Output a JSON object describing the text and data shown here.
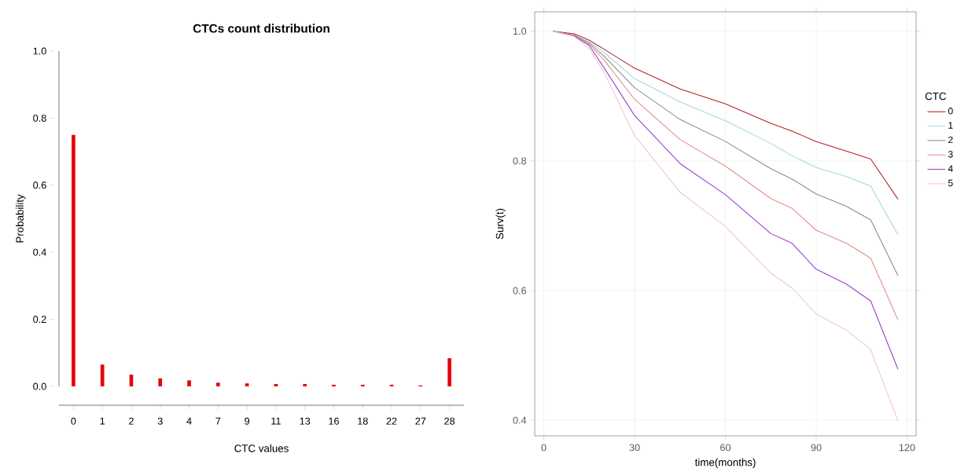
{
  "chart_data": [
    {
      "type": "bar",
      "title": "CTCs count distribution",
      "xlabel": "CTC values",
      "ylabel": "Probability",
      "categories": [
        "0",
        "1",
        "2",
        "3",
        "4",
        "7",
        "9",
        "11",
        "13",
        "16",
        "18",
        "22",
        "27",
        "28"
      ],
      "values": [
        0.75,
        0.065,
        0.035,
        0.024,
        0.018,
        0.011,
        0.009,
        0.007,
        0.007,
        0.005,
        0.005,
        0.005,
        0.003,
        0.084
      ],
      "color": "#e8000b",
      "ylim": [
        0,
        1
      ],
      "yticks": [
        {
          "value": 0,
          "label": "0.0"
        },
        0.2,
        0.4,
        0.6,
        0.8,
        {
          "value": 1,
          "label": "1.0"
        }
      ],
      "grid": false
    },
    {
      "type": "line",
      "xlabel": "time(months)",
      "ylabel": "Surv(t)",
      "legend_title": "CTC",
      "xlim": [
        -3,
        123
      ],
      "ylim": [
        0.376,
        1.03
      ],
      "xticks": [
        0,
        30,
        60,
        90,
        120
      ],
      "yticks": [
        {
          "value": 0.4,
          "label": "0.4"
        },
        {
          "value": 0.6,
          "label": "0.6"
        },
        {
          "value": 0.8,
          "label": "0.8"
        },
        {
          "value": 1.0,
          "label": "1.0"
        }
      ],
      "grid": true,
      "legend": "right",
      "x": [
        3,
        10,
        15,
        20,
        30,
        45,
        60,
        75,
        82,
        90,
        100,
        108,
        117
      ],
      "series": [
        {
          "name": "0",
          "color": "#b22222",
          "values": [
            1.0,
            0.996,
            0.986,
            0.972,
            0.943,
            0.911,
            0.888,
            0.858,
            0.846,
            0.83,
            0.815,
            0.803,
            0.741
          ]
        },
        {
          "name": "1",
          "color": "#a8d8dc",
          "values": [
            1.0,
            0.994,
            0.983,
            0.967,
            0.927,
            0.891,
            0.862,
            0.827,
            0.808,
            0.79,
            0.776,
            0.761,
            0.686
          ]
        },
        {
          "name": "2",
          "color": "#8c8c8c",
          "values": [
            1.0,
            0.994,
            0.982,
            0.961,
            0.913,
            0.864,
            0.83,
            0.788,
            0.772,
            0.749,
            0.73,
            0.709,
            0.623
          ]
        },
        {
          "name": "3",
          "color": "#e0908a",
          "values": [
            1.0,
            0.993,
            0.98,
            0.955,
            0.895,
            0.833,
            0.792,
            0.742,
            0.727,
            0.693,
            0.673,
            0.65,
            0.555
          ]
        },
        {
          "name": "4",
          "color": "#9b3fc9",
          "values": [
            1.0,
            0.993,
            0.978,
            0.943,
            0.87,
            0.796,
            0.748,
            0.688,
            0.673,
            0.633,
            0.61,
            0.584,
            0.479
          ]
        },
        {
          "name": "5",
          "color": "#f2c6d0",
          "values": [
            1.0,
            0.992,
            0.973,
            0.936,
            0.839,
            0.752,
            0.699,
            0.627,
            0.604,
            0.564,
            0.539,
            0.509,
            0.399
          ]
        }
      ]
    }
  ]
}
